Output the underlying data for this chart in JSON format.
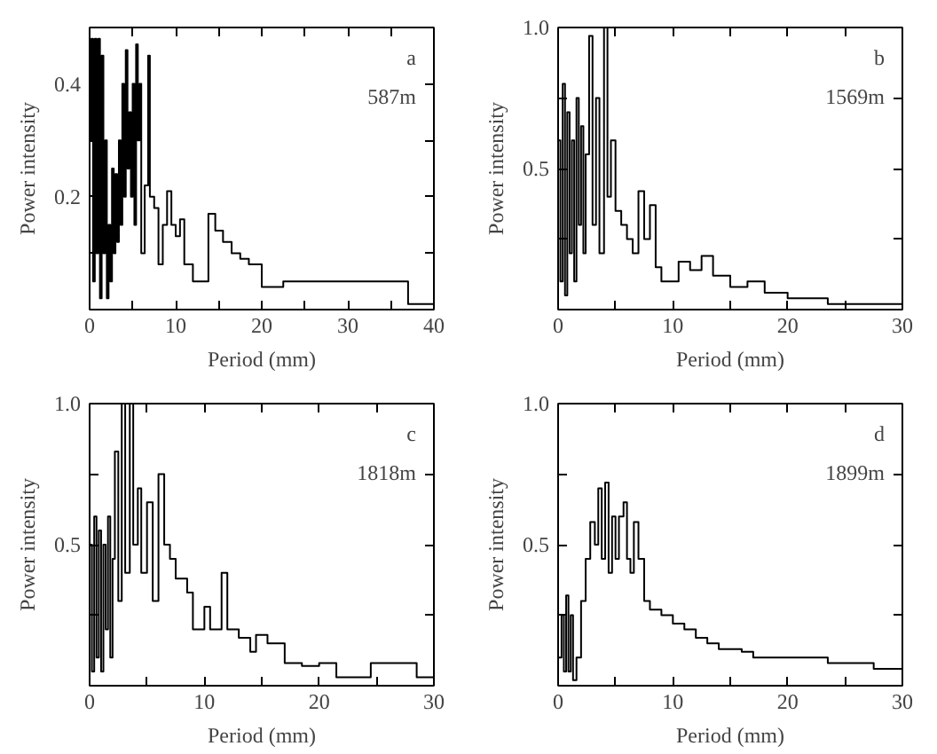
{
  "chart_data": [
    {
      "type": "step",
      "xlabel": "Period (mm)",
      "ylabel": "Power intensity",
      "annotations": [
        "a",
        "587m"
      ],
      "xlim": [
        0,
        40
      ],
      "ylim": [
        0,
        0.5
      ],
      "xticks": [
        0,
        {
          "value": 5,
          "label": null
        },
        10,
        {
          "value": 15,
          "label": null
        },
        20,
        {
          "value": 25,
          "label": null
        },
        30,
        {
          "value": 35,
          "label": null
        },
        40
      ],
      "yticks": [
        {
          "value": 0.1,
          "label": null
        },
        0.2,
        {
          "value": 0.3,
          "label": null
        },
        0.4
      ],
      "grid": false,
      "line_style": "solid",
      "color": "#000000",
      "x": [
        0,
        0.2,
        0.4,
        0.6,
        0.8,
        1.0,
        1.2,
        1.4,
        1.6,
        1.8,
        2.0,
        2.2,
        2.4,
        2.6,
        2.8,
        3.0,
        3.2,
        3.4,
        3.6,
        3.8,
        4.0,
        4.2,
        4.4,
        4.6,
        4.8,
        5.0,
        5.2,
        5.4,
        5.6,
        5.8,
        6.0,
        6.4,
        6.8,
        7.0,
        7.5,
        8.0,
        8.5,
        9.0,
        9.5,
        10,
        10.5,
        11,
        12,
        13,
        13.8,
        14.6,
        15.5,
        16.5,
        17.5,
        18.5,
        20,
        22.5,
        24,
        37,
        40
      ],
      "values": [
        0.3,
        0.48,
        0.05,
        0.48,
        0.1,
        0.48,
        0.02,
        0.45,
        0.1,
        0.3,
        0.02,
        0.15,
        0.05,
        0.25,
        0.1,
        0.24,
        0.12,
        0.3,
        0.15,
        0.4,
        0.2,
        0.46,
        0.25,
        0.35,
        0.2,
        0.4,
        0.15,
        0.47,
        0.3,
        0.4,
        0.1,
        0.22,
        0.45,
        0.2,
        0.18,
        0.08,
        0.15,
        0.21,
        0.15,
        0.13,
        0.16,
        0.08,
        0.05,
        0.05,
        0.17,
        0.14,
        0.12,
        0.1,
        0.09,
        0.08,
        0.04,
        0.05,
        0.05,
        0.01,
        0.01
      ]
    },
    {
      "type": "step",
      "xlabel": "Period (mm)",
      "ylabel": "Power intensity",
      "annotations": [
        "b",
        "1569m"
      ],
      "xlim": [
        0,
        30
      ],
      "ylim": [
        0,
        1
      ],
      "xticks": [
        0,
        {
          "value": 5,
          "label": null
        },
        10,
        {
          "value": 15,
          "label": null
        },
        20,
        {
          "value": 25,
          "label": null
        },
        30
      ],
      "yticks": [
        {
          "value": 0.25,
          "label": null
        },
        0.5,
        {
          "value": 0.75,
          "label": null
        },
        {
          "value": 1,
          "label": "1.0"
        }
      ],
      "grid": false,
      "line_style": "solid",
      "color": "#000000",
      "x": [
        0,
        0.2,
        0.4,
        0.6,
        0.8,
        1.0,
        1.2,
        1.4,
        1.6,
        1.8,
        2.0,
        2.2,
        2.4,
        2.7,
        3.0,
        3.3,
        3.6,
        4.0,
        4.3,
        4.6,
        5.0,
        5.5,
        6.0,
        6.5,
        7.0,
        7.5,
        8.0,
        8.5,
        9.0,
        10.5,
        11.5,
        12.5,
        13.5,
        15,
        16.5,
        18,
        20,
        23.5,
        30
      ],
      "values": [
        0.6,
        0.1,
        0.8,
        0.05,
        0.7,
        0.2,
        0.6,
        0.1,
        0.75,
        0.3,
        0.65,
        0.2,
        0.55,
        0.97,
        0.3,
        0.75,
        0.2,
        1.0,
        0.4,
        0.6,
        0.35,
        0.3,
        0.25,
        0.2,
        0.42,
        0.25,
        0.37,
        0.15,
        0.1,
        0.17,
        0.14,
        0.19,
        0.12,
        0.08,
        0.1,
        0.06,
        0.04,
        0.02,
        0.02
      ]
    },
    {
      "type": "step",
      "xlabel": "Period (mm)",
      "ylabel": "Power intensity",
      "annotations": [
        "c",
        "1818m"
      ],
      "xlim": [
        0,
        30
      ],
      "ylim": [
        0,
        1
      ],
      "xticks": [
        0,
        {
          "value": 5,
          "label": null
        },
        10,
        {
          "value": 15,
          "label": null
        },
        20,
        {
          "value": 25,
          "label": null
        },
        30
      ],
      "yticks": [
        {
          "value": 0.25,
          "label": null
        },
        0.5,
        {
          "value": 0.75,
          "label": null
        },
        {
          "value": 1,
          "label": "1.0"
        }
      ],
      "grid": false,
      "line_style": "solid",
      "color": "#000000",
      "x": [
        0,
        0.2,
        0.4,
        0.6,
        0.8,
        1.0,
        1.2,
        1.4,
        1.6,
        1.8,
        2.0,
        2.2,
        2.5,
        2.8,
        3.1,
        3.5,
        3.8,
        4.2,
        4.5,
        5.0,
        5.5,
        6.0,
        6.5,
        7.0,
        7.5,
        8.5,
        9.0,
        10,
        10.5,
        11.5,
        12,
        13,
        14,
        14.5,
        15.5,
        17,
        18.5,
        20,
        21.5,
        24.5,
        28.5,
        30
      ],
      "values": [
        0.5,
        0.05,
        0.6,
        0.1,
        0.55,
        0.05,
        0.5,
        0.2,
        0.6,
        0.1,
        0.45,
        0.83,
        0.3,
        1.0,
        0.4,
        1.0,
        0.5,
        0.7,
        0.4,
        0.65,
        0.3,
        0.75,
        0.5,
        0.45,
        0.38,
        0.33,
        0.2,
        0.28,
        0.2,
        0.4,
        0.2,
        0.17,
        0.12,
        0.18,
        0.15,
        0.08,
        0.07,
        0.08,
        0.03,
        0.08,
        0.03,
        0.03
      ]
    },
    {
      "type": "step",
      "xlabel": "Period (mm)",
      "ylabel": "Power intensity",
      "annotations": [
        "d",
        "1899m"
      ],
      "xlim": [
        0,
        30
      ],
      "ylim": [
        0,
        1
      ],
      "xticks": [
        0,
        {
          "value": 5,
          "label": null
        },
        10,
        {
          "value": 15,
          "label": null
        },
        20,
        {
          "value": 25,
          "label": null
        },
        30
      ],
      "yticks": [
        {
          "value": 0.25,
          "label": null
        },
        0.5,
        {
          "value": 0.75,
          "label": null
        },
        {
          "value": 1,
          "label": "1.0"
        }
      ],
      "grid": false,
      "line_style": "solid",
      "color": "#000000",
      "x": [
        0,
        0.3,
        0.5,
        0.7,
        0.9,
        1.1,
        1.3,
        1.6,
        2.0,
        2.4,
        2.8,
        3.2,
        3.5,
        3.8,
        4.1,
        4.4,
        4.7,
        5.0,
        5.3,
        5.7,
        6.0,
        6.3,
        6.6,
        7.0,
        7.5,
        8,
        9,
        10,
        11,
        12,
        13,
        14,
        16,
        17,
        23.5,
        27.5,
        30
      ],
      "values": [
        0.1,
        0.25,
        0.05,
        0.32,
        0.05,
        0.25,
        0.02,
        0.1,
        0.3,
        0.45,
        0.58,
        0.5,
        0.7,
        0.45,
        0.72,
        0.4,
        0.6,
        0.45,
        0.6,
        0.65,
        0.45,
        0.4,
        0.58,
        0.45,
        0.3,
        0.27,
        0.25,
        0.22,
        0.2,
        0.17,
        0.15,
        0.13,
        0.12,
        0.1,
        0.08,
        0.06,
        0.06
      ]
    }
  ]
}
